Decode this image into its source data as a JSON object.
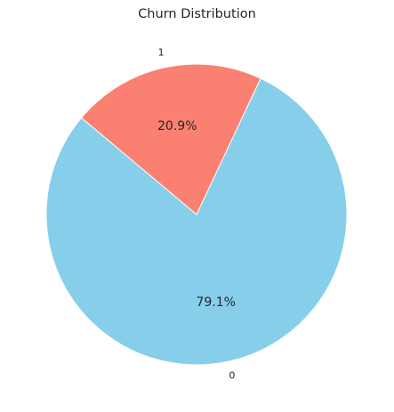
{
  "chart_data": {
    "type": "pie",
    "title": "Churn Distribution",
    "categories": [
      "0",
      "1"
    ],
    "values": [
      79.1,
      20.9
    ],
    "labels": [
      "0",
      "1"
    ],
    "percent_labels": [
      "79.1%",
      "20.9%"
    ],
    "colors": [
      "#87ceeb",
      "#fa8072"
    ],
    "start_angle_deg": 140,
    "legend": "none"
  }
}
